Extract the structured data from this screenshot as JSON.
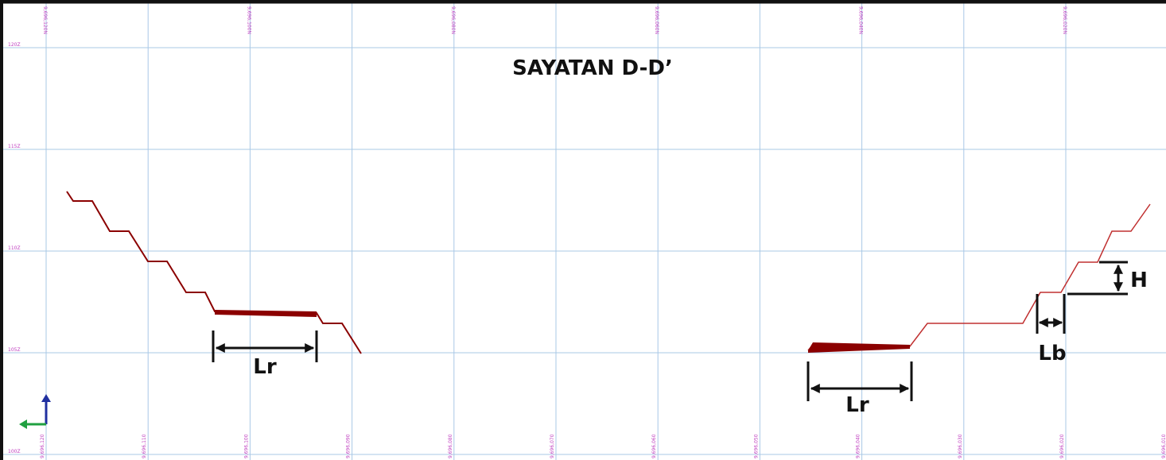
{
  "title": "SAYATAN D-D’",
  "dimensions": {
    "lr_left": "Lr",
    "lr_right": "Lr",
    "lb": "Lb",
    "h": "H"
  },
  "top_labels": [
    "9,696,120N",
    "9,696,100N",
    "9,696,080N",
    "9,696,060N",
    "9,696,040N",
    "9,696,020N"
  ],
  "left_labels": [
    "120Z",
    "115Z",
    "110Z",
    "105Z",
    "100Z"
  ],
  "bottom_labels": [
    "9,696,120",
    "9,696,110",
    "9,696,100",
    "9,696,090",
    "9,696,080",
    "9,696,070",
    "9,696,060",
    "9,696,050",
    "9,696,040",
    "9,696,030",
    "9,696,020",
    "9,696,010"
  ]
}
